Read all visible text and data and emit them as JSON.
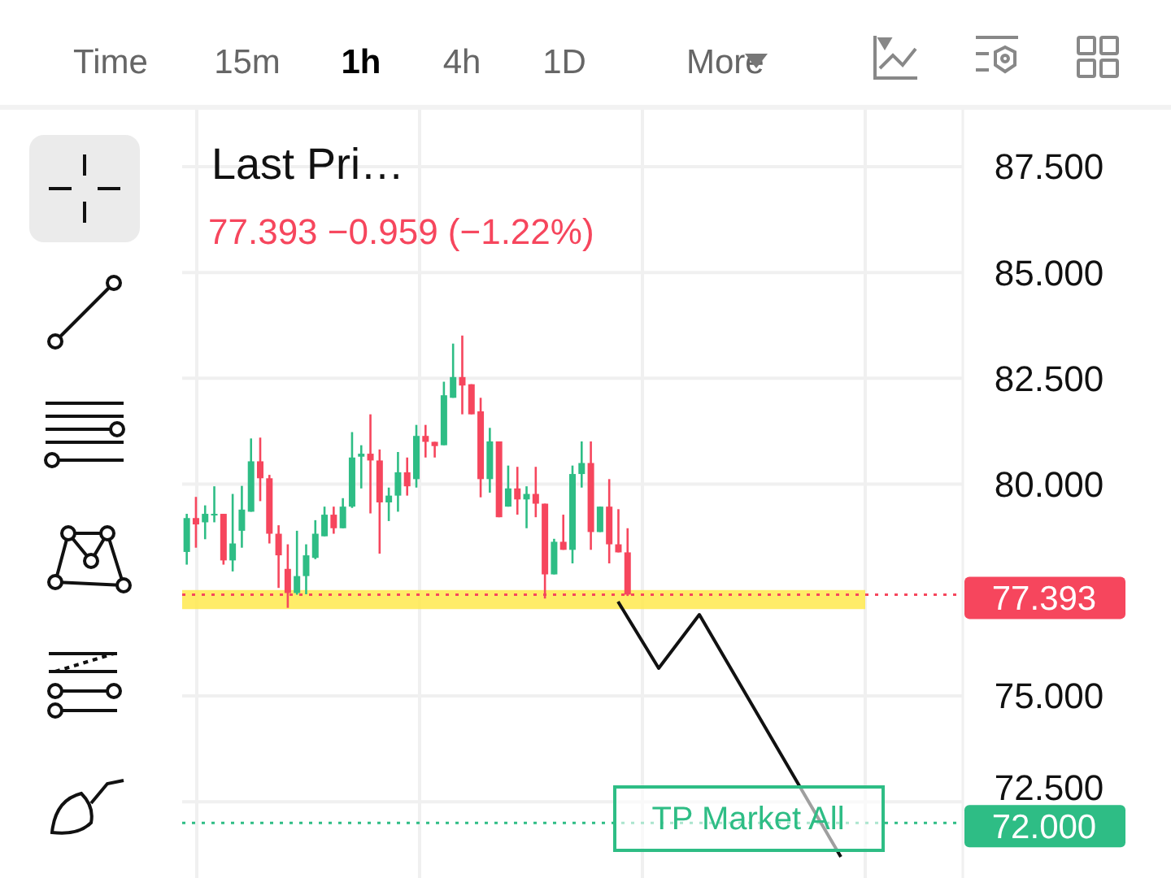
{
  "chart_data": {
    "type": "candlestick",
    "title": "Last Pri…",
    "subtitle": "77.393  −0.959 (−1.22%)",
    "categories": [
      null,
      null,
      null,
      null,
      null,
      null,
      null,
      null,
      null,
      null,
      null,
      null,
      null,
      null,
      null,
      null,
      null,
      null,
      null,
      null,
      null,
      null,
      null,
      null,
      null,
      null,
      null,
      null,
      null,
      null,
      null,
      null,
      null,
      null,
      null,
      null,
      null,
      null,
      null,
      null,
      null,
      null,
      null,
      null,
      null,
      null,
      null,
      null,
      null,
      null,
      null,
      null,
      null,
      null,
      null,
      null,
      null,
      null,
      null,
      null,
      null,
      null,
      null,
      null,
      null,
      null,
      null,
      null,
      null,
      null,
      null,
      null,
      null,
      null,
      null,
      null,
      null,
      null,
      null,
      null,
      null,
      null,
      null,
      null,
      null
    ],
    "ohlc": [
      [
        78.4,
        79.3,
        78.1,
        79.2
      ],
      [
        79.2,
        79.7,
        78.5,
        79.05
      ],
      [
        79.1,
        79.5,
        78.7,
        79.3
      ],
      [
        79.27,
        79.95,
        79.1,
        79.3
      ],
      [
        79.3,
        79.3,
        78.1,
        78.2
      ],
      [
        78.2,
        79.77,
        77.94,
        78.6
      ],
      [
        78.9,
        79.96,
        78.5,
        79.4
      ],
      [
        79.35,
        81.08,
        79.35,
        80.54
      ],
      [
        80.54,
        81.1,
        79.6,
        80.14
      ],
      [
        80.14,
        80.22,
        78.6,
        78.83
      ],
      [
        78.83,
        79.03,
        77.55,
        78.32
      ],
      [
        78.0,
        78.58,
        77.08,
        77.43
      ],
      [
        77.43,
        78.9,
        77.39,
        77.83
      ],
      [
        77.83,
        78.58,
        77.4,
        78.32
      ],
      [
        78.26,
        79.15,
        78.23,
        78.83
      ],
      [
        78.77,
        79.47,
        78.77,
        79.28
      ],
      [
        79.28,
        79.47,
        78.83,
        78.96
      ],
      [
        78.96,
        79.67,
        78.96,
        79.47
      ],
      [
        79.47,
        81.23,
        79.44,
        80.63
      ],
      [
        80.65,
        80.92,
        79.9,
        80.72
      ],
      [
        80.72,
        81.65,
        79.31,
        80.56
      ],
      [
        80.56,
        80.82,
        78.36,
        79.57
      ],
      [
        79.57,
        79.92,
        79.13,
        79.73
      ],
      [
        79.73,
        80.76,
        79.35,
        80.28
      ],
      [
        80.28,
        80.63,
        79.73,
        79.95
      ],
      [
        80.12,
        81.4,
        79.92,
        81.14
      ],
      [
        81.14,
        81.4,
        80.63,
        81.0
      ],
      [
        81.0,
        81.0,
        80.63,
        80.9
      ],
      [
        80.92,
        82.42,
        80.92,
        82.1
      ],
      [
        82.04,
        83.32,
        82.04,
        82.53
      ],
      [
        82.53,
        83.51,
        81.65,
        82.33
      ],
      [
        82.36,
        82.36,
        81.65,
        81.65
      ],
      [
        81.72,
        82.04,
        79.69,
        80.12
      ],
      [
        80.12,
        81.33,
        79.8,
        81.01
      ],
      [
        81.01,
        81.01,
        79.22,
        79.22
      ],
      [
        79.47,
        80.44,
        79.47,
        79.9
      ],
      [
        79.9,
        80.41,
        79.28,
        79.64
      ],
      [
        79.64,
        79.95,
        78.96,
        79.77
      ],
      [
        79.77,
        80.41,
        79.22,
        79.54
      ],
      [
        79.54,
        79.54,
        77.3,
        77.87
      ],
      [
        77.87,
        78.71,
        77.87,
        78.64
      ],
      [
        78.64,
        79.28,
        78.45,
        78.45
      ],
      [
        78.45,
        80.44,
        78.13,
        80.24
      ],
      [
        80.24,
        81.01,
        79.92,
        80.5
      ],
      [
        80.5,
        81.01,
        78.45,
        78.87
      ],
      [
        78.87,
        79.47,
        78.87,
        79.47
      ],
      [
        79.47,
        80.12,
        78.13,
        78.58
      ],
      [
        78.58,
        79.41,
        78.39,
        78.39
      ],
      [
        78.39,
        78.96,
        77.36,
        77.393
      ],
      null,
      null,
      null,
      null,
      null,
      null,
      null,
      null,
      null,
      null,
      null,
      null,
      null,
      null,
      null,
      null,
      null,
      null,
      null,
      null,
      null,
      null,
      null,
      null,
      null,
      null,
      null,
      null,
      null,
      null,
      null,
      null,
      null,
      null,
      null,
      null
    ],
    "ylim": [
      70.7,
      88.9
    ],
    "yticks": [
      {
        "value": 72.5,
        "label": "72.500"
      },
      {
        "value": 75,
        "label": "75.000"
      },
      {
        "value": 80,
        "label": "80.000"
      },
      {
        "value": 82.5,
        "label": "82.500"
      },
      {
        "value": 85,
        "label": "85.000"
      },
      {
        "value": 87.5,
        "label": "87.500"
      }
    ],
    "tick_labels": "y",
    "grid": true,
    "ref_lines": [
      {
        "axis": "y",
        "value": 77.393,
        "label": "77.393",
        "color": "#f6465d",
        "line_style": "dotted"
      },
      {
        "axis": "y",
        "value": 72,
        "label": "72.000",
        "color": "#2ebd85",
        "line_style": "dotted"
      }
    ],
    "bands": [
      {
        "axis": "y",
        "from": 77.05,
        "to": 77.5,
        "color": "#ffe94d"
      }
    ],
    "annotations": [
      "Time",
      "15m",
      "1h",
      "4h",
      "1D",
      "More",
      "TP Market All"
    ]
  }
}
